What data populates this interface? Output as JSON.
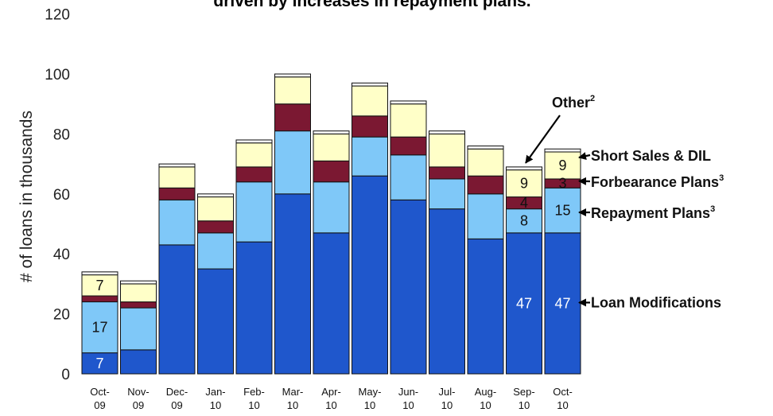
{
  "colors": {
    "loan_mod": "#1f57cc",
    "repayment": "#7fc8f8",
    "forbearance": "#7b1832",
    "short_sales": "#ffffc8",
    "other": "#f6f6f6",
    "bar_edge": "#111111"
  },
  "chart_data": {
    "type": "bar",
    "stacked": true,
    "title_fragment": "driven by increases in repayment plans.",
    "ylabel": "# of loans in thousands",
    "ylim": [
      0,
      120
    ],
    "yticks": [
      0,
      20,
      40,
      60,
      80,
      100,
      120
    ],
    "grid": false,
    "categories": [
      [
        "Oct-",
        "09"
      ],
      [
        "Nov-",
        "09"
      ],
      [
        "Dec-",
        "09"
      ],
      [
        "Jan-",
        "10"
      ],
      [
        "Feb-",
        "10"
      ],
      [
        "Mar-",
        "10"
      ],
      [
        "Apr-",
        "10"
      ],
      [
        "May-",
        "10"
      ],
      [
        "Jun-",
        "10"
      ],
      [
        "Jul-",
        "10"
      ],
      [
        "Aug-",
        "10"
      ],
      [
        "Sep-",
        "10"
      ],
      [
        "Oct-",
        "10"
      ]
    ],
    "series": [
      {
        "key": "loan_mod",
        "name": "Loan Modifications",
        "values": [
          7,
          8,
          43,
          35,
          44,
          60,
          47,
          66,
          58,
          55,
          45,
          47,
          47
        ]
      },
      {
        "key": "repayment",
        "name": "Repayment Plans",
        "sup": "3",
        "values": [
          17,
          14,
          15,
          12,
          20,
          21,
          17,
          13,
          15,
          10,
          15,
          8,
          15
        ]
      },
      {
        "key": "forbearance",
        "name": "Forbearance Plans",
        "sup": "3",
        "values": [
          2,
          2,
          4,
          4,
          5,
          9,
          7,
          7,
          6,
          4,
          6,
          4,
          3
        ]
      },
      {
        "key": "short_sales",
        "name": "Short Sales & DIL",
        "values": [
          7,
          6,
          7,
          8,
          8,
          9,
          9,
          10,
          11,
          11,
          9,
          9,
          9
        ]
      },
      {
        "key": "other",
        "name": "Other",
        "sup": "2",
        "values": [
          1,
          1,
          1,
          1,
          1,
          1,
          1,
          1,
          1,
          1,
          1,
          1,
          1
        ]
      }
    ],
    "data_labels": [
      {
        "bar": 0,
        "series": "loan_mod",
        "text": "7"
      },
      {
        "bar": 0,
        "series": "repayment",
        "text": "17"
      },
      {
        "bar": 0,
        "series": "short_sales",
        "text": "7"
      },
      {
        "bar": 11,
        "series": "loan_mod",
        "text": "47"
      },
      {
        "bar": 11,
        "series": "repayment",
        "text": "8"
      },
      {
        "bar": 11,
        "series": "forbearance",
        "text": "4"
      },
      {
        "bar": 11,
        "series": "short_sales",
        "text": "9"
      },
      {
        "bar": 12,
        "series": "loan_mod",
        "text": "47"
      },
      {
        "bar": 12,
        "series": "repayment",
        "text": "15"
      },
      {
        "bar": 12,
        "series": "forbearance",
        "text": "3"
      },
      {
        "bar": 12,
        "series": "short_sales",
        "text": "9"
      }
    ]
  }
}
